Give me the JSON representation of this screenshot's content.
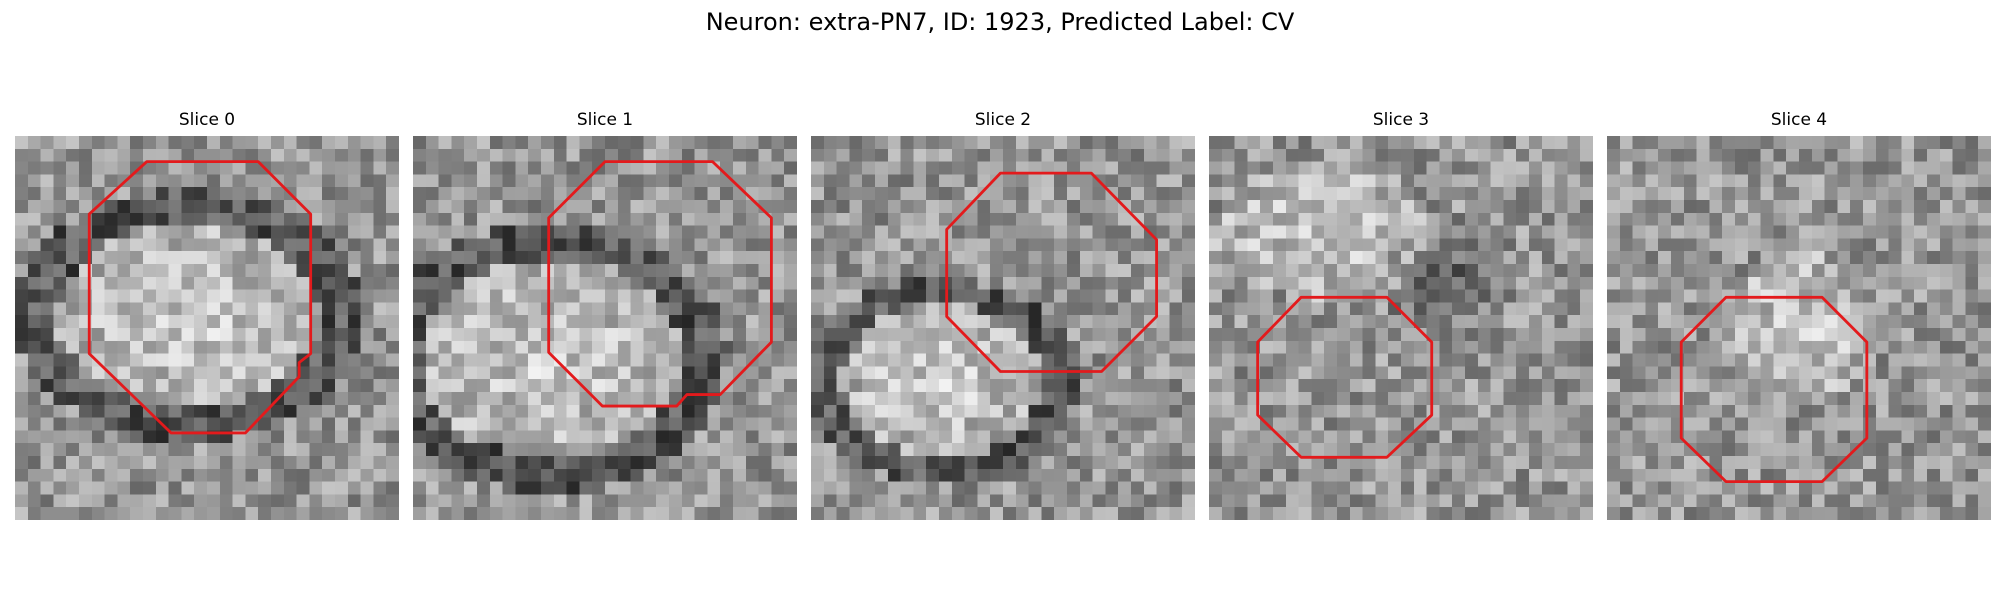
{
  "figure": {
    "title": "Neuron: extra-PN7, ID: 1923, Predicted Label: CV"
  },
  "panels": [
    {
      "title": "Slice 0",
      "content": "grayscale micrograph: bright oval soma with dark membrane ring",
      "overlay_color": "#e31a1c",
      "bright_center": [
        0.45,
        0.47
      ],
      "bright_radius": [
        0.34,
        0.24
      ],
      "ring_dark": true,
      "dark_spot": null
    },
    {
      "title": "Slice 1",
      "content": "grayscale micrograph: bright soma lower-left, dark ring, dark notch at top",
      "overlay_color": "#e31a1c",
      "bright_center": [
        0.36,
        0.58
      ],
      "bright_radius": [
        0.34,
        0.26
      ],
      "ring_dark": true,
      "dark_spot": [
        0.28,
        0.18,
        0.06
      ]
    },
    {
      "title": "Slice 2",
      "content": "grayscale micrograph: dim soma lower-left, dark band top-left, dark blob bottom",
      "overlay_color": "#e31a1c",
      "bright_center": [
        0.34,
        0.64
      ],
      "bright_radius": [
        0.26,
        0.2
      ],
      "ring_dark": true,
      "dark_spot": [
        0.5,
        0.78,
        0.06
      ]
    },
    {
      "title": "Slice 3",
      "content": "grayscale micrograph: diffuse texture with darker patch in upper-right",
      "overlay_color": "#e31a1c",
      "bright_center": [
        0.3,
        0.25
      ],
      "bright_radius": [
        0.3,
        0.18
      ],
      "ring_dark": false,
      "dark_spot": [
        0.62,
        0.38,
        0.2
      ]
    },
    {
      "title": "Slice 4",
      "content": "grayscale micrograph: uniform noisy grey texture",
      "overlay_color": "#e31a1c",
      "bright_center": [
        0.5,
        0.5
      ],
      "bright_radius": [
        0.2,
        0.2
      ],
      "ring_dark": false,
      "dark_spot": null
    }
  ]
}
